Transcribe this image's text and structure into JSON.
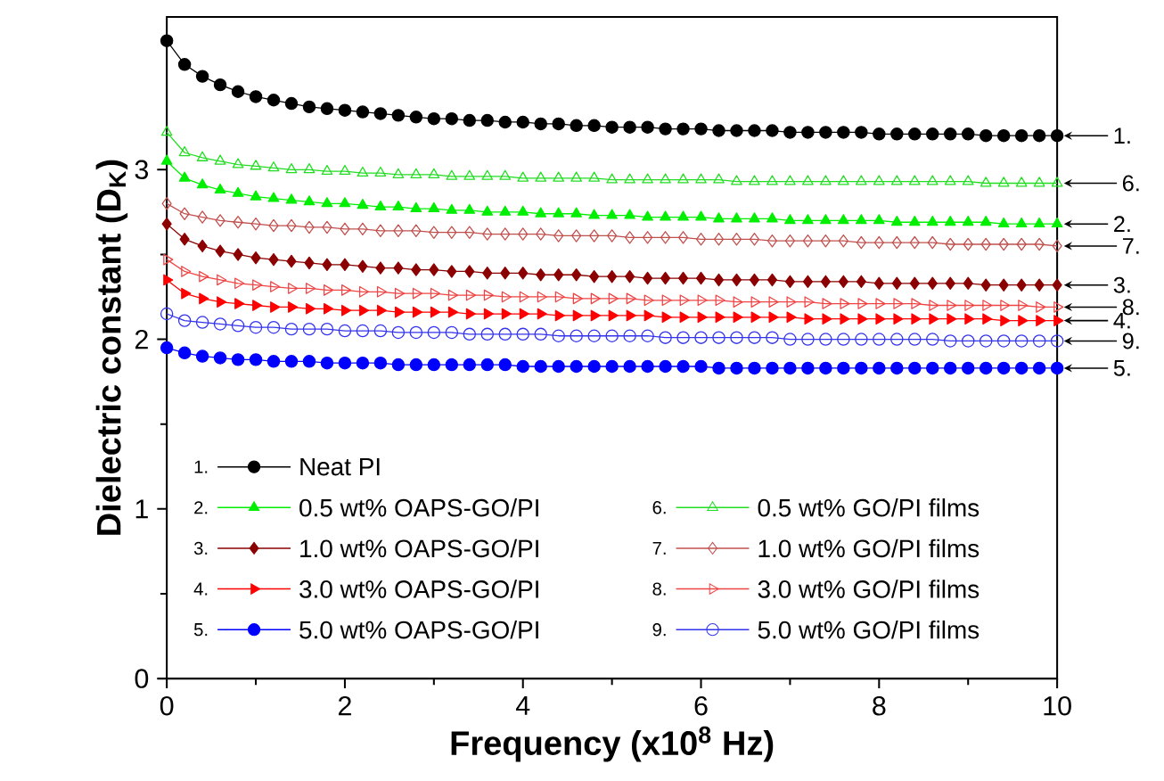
{
  "chart_data": {
    "type": "line",
    "xlabel": "Frequency (x10$^{8}$ Hz)",
    "ylabel": "Dielectric constant (D$_{K}$)",
    "x": [
      0,
      0.2,
      0.4,
      0.6,
      0.8,
      1,
      1.2,
      1.4,
      1.6,
      1.8,
      2,
      2.2,
      2.4,
      2.6,
      2.8,
      3,
      3.2,
      3.4,
      3.6,
      3.8,
      4,
      4.2,
      4.4,
      4.6,
      4.8,
      5,
      5.2,
      5.4,
      5.6,
      5.8,
      6,
      6.2,
      6.4,
      6.6,
      6.8,
      7,
      7.2,
      7.4,
      7.6,
      7.8,
      8,
      8.2,
      8.4,
      8.6,
      8.8,
      9,
      9.2,
      9.4,
      9.6,
      9.8,
      10
    ],
    "xlim": [
      0,
      10
    ],
    "xticks": [
      0,
      2,
      4,
      6,
      8,
      10
    ],
    "ylim": [
      0,
      3.9
    ],
    "yticks": [
      0,
      1,
      2,
      3
    ],
    "grid": false,
    "legend": "bottom left",
    "line_style": "solid",
    "series": [
      {
        "name": "Neat PI",
        "color": "#000000",
        "marker": "circle",
        "values": [
          3.76,
          3.62,
          3.55,
          3.5,
          3.46,
          3.43,
          3.41,
          3.39,
          3.37,
          3.36,
          3.35,
          3.34,
          3.33,
          3.32,
          3.31,
          3.3,
          3.3,
          3.29,
          3.29,
          3.28,
          3.28,
          3.27,
          3.27,
          3.26,
          3.26,
          3.25,
          3.25,
          3.25,
          3.24,
          3.24,
          3.24,
          3.23,
          3.23,
          3.23,
          3.23,
          3.22,
          3.22,
          3.22,
          3.22,
          3.22,
          3.21,
          3.21,
          3.21,
          3.21,
          3.21,
          3.21,
          3.2,
          3.2,
          3.2,
          3.2,
          3.2
        ]
      },
      {
        "name": "0.5 wt% OAPS-GO/PI",
        "color": "#00ee00",
        "marker": "triangle",
        "values": [
          3.05,
          2.95,
          2.91,
          2.88,
          2.86,
          2.84,
          2.83,
          2.82,
          2.81,
          2.8,
          2.8,
          2.79,
          2.78,
          2.78,
          2.77,
          2.77,
          2.76,
          2.76,
          2.75,
          2.75,
          2.75,
          2.74,
          2.74,
          2.74,
          2.73,
          2.73,
          2.73,
          2.72,
          2.72,
          2.72,
          2.72,
          2.71,
          2.71,
          2.71,
          2.71,
          2.7,
          2.7,
          2.7,
          2.7,
          2.7,
          2.7,
          2.69,
          2.69,
          2.69,
          2.69,
          2.69,
          2.69,
          2.68,
          2.68,
          2.68,
          2.68
        ]
      },
      {
        "name": "1.0 wt% OAPS-GO/PI",
        "color": "#8b0000",
        "marker": "diamond",
        "values": [
          2.68,
          2.59,
          2.55,
          2.52,
          2.5,
          2.48,
          2.47,
          2.46,
          2.45,
          2.44,
          2.44,
          2.43,
          2.42,
          2.42,
          2.41,
          2.41,
          2.4,
          2.4,
          2.39,
          2.39,
          2.39,
          2.38,
          2.38,
          2.38,
          2.37,
          2.37,
          2.37,
          2.36,
          2.36,
          2.36,
          2.36,
          2.35,
          2.35,
          2.35,
          2.35,
          2.34,
          2.34,
          2.34,
          2.34,
          2.34,
          2.33,
          2.33,
          2.33,
          2.33,
          2.33,
          2.33,
          2.32,
          2.32,
          2.32,
          2.32,
          2.32
        ]
      },
      {
        "name": "3.0 wt% OAPS-GO/PI",
        "color": "#ff0000",
        "marker": "triangle-right",
        "values": [
          2.35,
          2.27,
          2.24,
          2.22,
          2.21,
          2.2,
          2.19,
          2.19,
          2.18,
          2.18,
          2.17,
          2.17,
          2.17,
          2.16,
          2.16,
          2.16,
          2.16,
          2.15,
          2.15,
          2.15,
          2.15,
          2.15,
          2.14,
          2.14,
          2.14,
          2.14,
          2.14,
          2.14,
          2.13,
          2.13,
          2.13,
          2.13,
          2.13,
          2.13,
          2.13,
          2.13,
          2.12,
          2.12,
          2.12,
          2.12,
          2.12,
          2.12,
          2.12,
          2.12,
          2.12,
          2.12,
          2.12,
          2.11,
          2.11,
          2.11,
          2.11
        ]
      },
      {
        "name": "5.0 wt% OAPS-GO/PI",
        "color": "#0000ff",
        "marker": "circle",
        "values": [
          1.95,
          1.92,
          1.9,
          1.89,
          1.88,
          1.88,
          1.87,
          1.87,
          1.87,
          1.86,
          1.86,
          1.86,
          1.86,
          1.85,
          1.85,
          1.85,
          1.85,
          1.85,
          1.85,
          1.85,
          1.84,
          1.84,
          1.84,
          1.84,
          1.84,
          1.84,
          1.84,
          1.84,
          1.84,
          1.84,
          1.84,
          1.83,
          1.83,
          1.83,
          1.83,
          1.83,
          1.83,
          1.83,
          1.83,
          1.83,
          1.83,
          1.83,
          1.83,
          1.83,
          1.83,
          1.83,
          1.83,
          1.83,
          1.83,
          1.83,
          1.83
        ]
      },
      {
        "name": "0.5 wt% GO/PI films",
        "color": "#22dd22",
        "marker": "triangle-open",
        "values": [
          3.22,
          3.1,
          3.07,
          3.05,
          3.03,
          3.02,
          3.01,
          3.0,
          3.0,
          2.99,
          2.99,
          2.98,
          2.98,
          2.97,
          2.97,
          2.97,
          2.96,
          2.96,
          2.96,
          2.96,
          2.95,
          2.95,
          2.95,
          2.95,
          2.95,
          2.94,
          2.94,
          2.94,
          2.94,
          2.94,
          2.94,
          2.94,
          2.93,
          2.93,
          2.93,
          2.93,
          2.93,
          2.93,
          2.93,
          2.93,
          2.93,
          2.93,
          2.93,
          2.93,
          2.93,
          2.93,
          2.92,
          2.92,
          2.92,
          2.92,
          2.92
        ]
      },
      {
        "name": "1.0 wt% GO/PI films",
        "color": "#c0504d",
        "marker": "diamond-open",
        "values": [
          2.8,
          2.74,
          2.72,
          2.7,
          2.69,
          2.68,
          2.67,
          2.67,
          2.66,
          2.66,
          2.65,
          2.65,
          2.64,
          2.64,
          2.64,
          2.63,
          2.63,
          2.63,
          2.62,
          2.62,
          2.62,
          2.62,
          2.61,
          2.61,
          2.61,
          2.61,
          2.6,
          2.6,
          2.6,
          2.6,
          2.59,
          2.59,
          2.59,
          2.59,
          2.58,
          2.58,
          2.58,
          2.58,
          2.58,
          2.57,
          2.57,
          2.57,
          2.57,
          2.57,
          2.56,
          2.56,
          2.56,
          2.56,
          2.56,
          2.56,
          2.55
        ]
      },
      {
        "name": "3.0 wt% GO/PI films",
        "color": "#ee4444",
        "marker": "triangle-right-open",
        "values": [
          2.47,
          2.4,
          2.37,
          2.35,
          2.33,
          2.32,
          2.31,
          2.3,
          2.3,
          2.29,
          2.29,
          2.28,
          2.28,
          2.27,
          2.27,
          2.27,
          2.26,
          2.26,
          2.26,
          2.25,
          2.25,
          2.25,
          2.25,
          2.24,
          2.24,
          2.24,
          2.24,
          2.23,
          2.23,
          2.23,
          2.23,
          2.23,
          2.22,
          2.22,
          2.22,
          2.22,
          2.22,
          2.21,
          2.21,
          2.21,
          2.21,
          2.21,
          2.21,
          2.2,
          2.2,
          2.2,
          2.2,
          2.2,
          2.2,
          2.19,
          2.19
        ]
      },
      {
        "name": "5.0 wt% GO/PI films",
        "color": "#3333ee",
        "marker": "circle-open",
        "values": [
          2.15,
          2.11,
          2.1,
          2.09,
          2.08,
          2.07,
          2.07,
          2.06,
          2.06,
          2.06,
          2.05,
          2.05,
          2.05,
          2.04,
          2.04,
          2.04,
          2.04,
          2.03,
          2.03,
          2.03,
          2.03,
          2.03,
          2.02,
          2.02,
          2.02,
          2.02,
          2.02,
          2.02,
          2.01,
          2.01,
          2.01,
          2.01,
          2.01,
          2.01,
          2.01,
          2.0,
          2.0,
          2.0,
          2.0,
          2.0,
          2.0,
          2.0,
          2.0,
          2.0,
          1.99,
          1.99,
          1.99,
          1.99,
          1.99,
          1.99,
          1.99
        ]
      }
    ],
    "annotations": [
      "1.",
      "2.",
      "3.",
      "4.",
      "5.",
      "6.",
      "7.",
      "8.",
      "9."
    ]
  }
}
